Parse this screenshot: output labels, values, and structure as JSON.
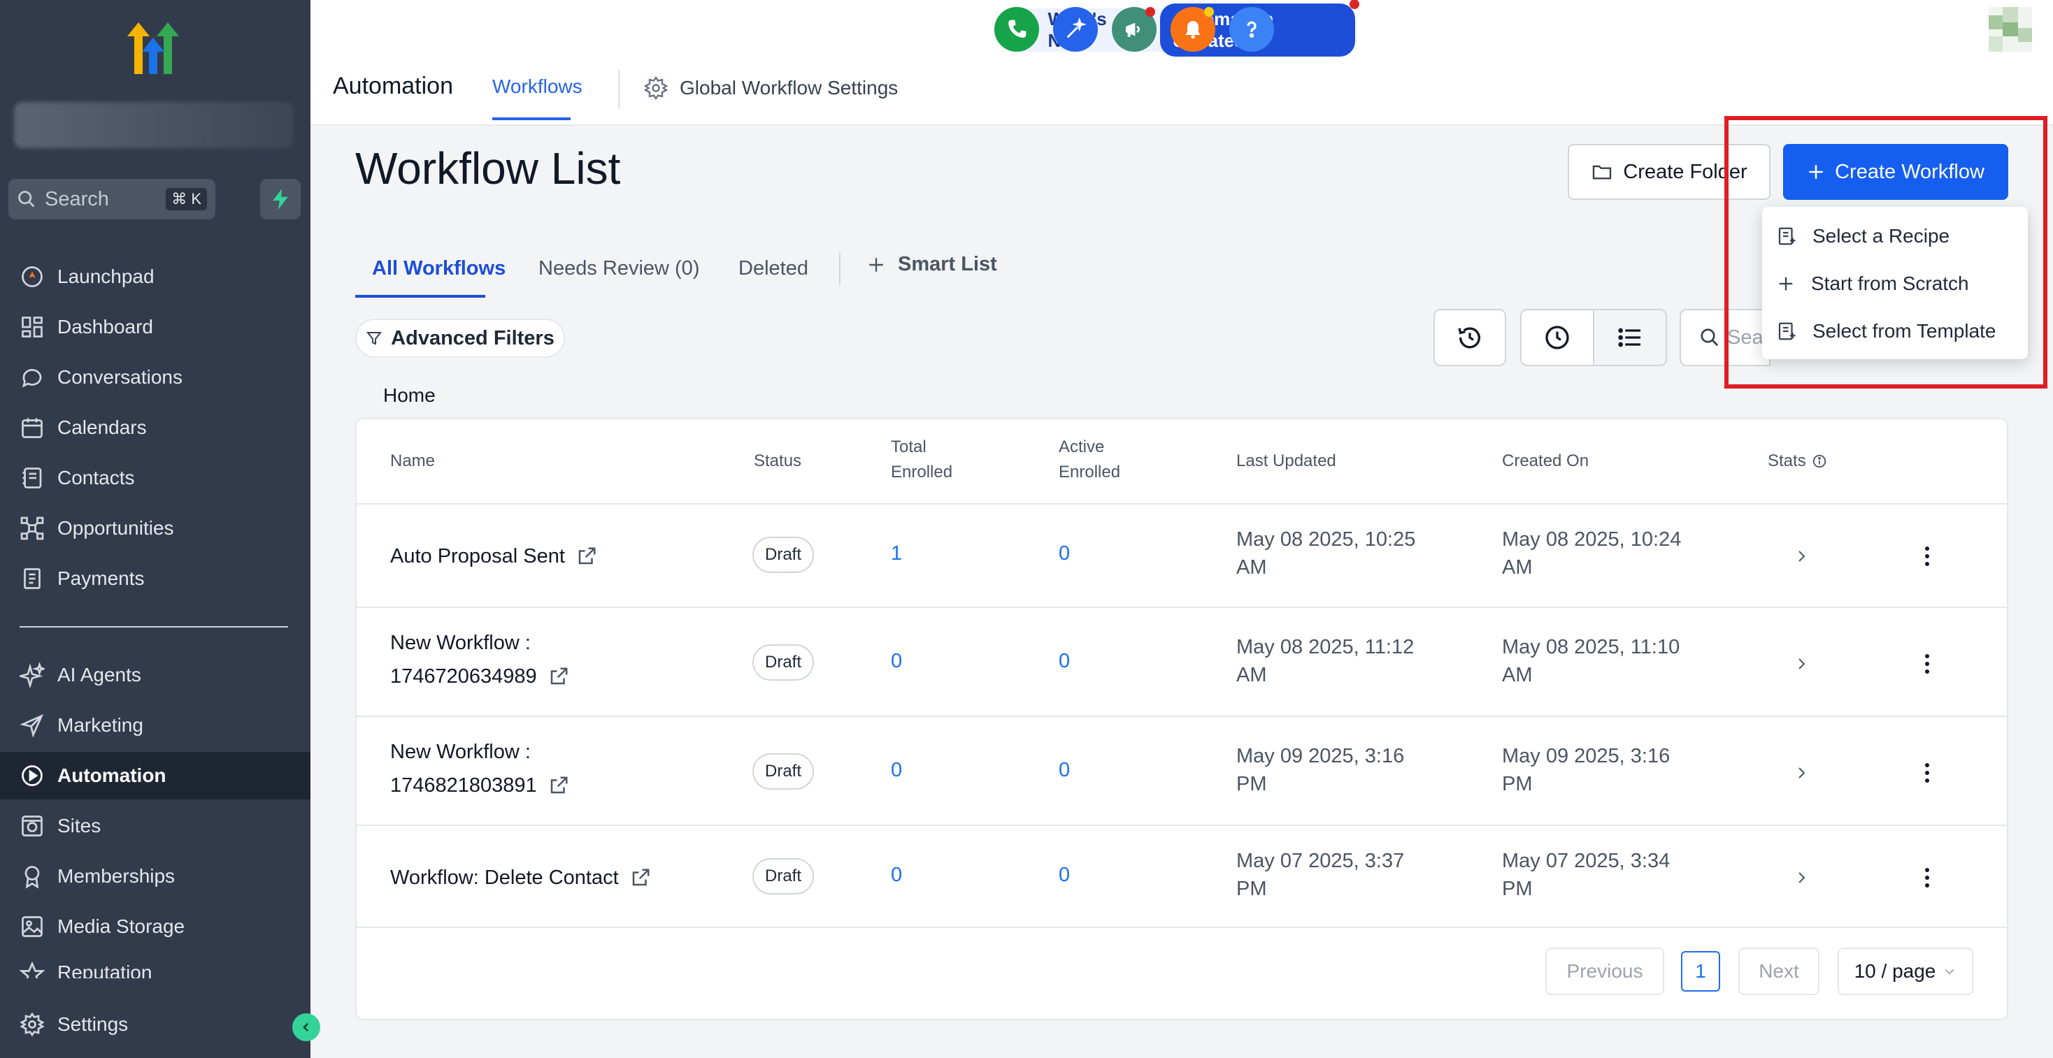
{
  "sidebar": {
    "search_placeholder": "Search",
    "search_shortcut": "⌘ K",
    "items": [
      {
        "label": "Launchpad",
        "icon": "rocket-icon"
      },
      {
        "label": "Dashboard",
        "icon": "grid-icon"
      },
      {
        "label": "Conversations",
        "icon": "chat-bubble-icon"
      },
      {
        "label": "Calendars",
        "icon": "calendar-icon"
      },
      {
        "label": "Contacts",
        "icon": "contact-card-icon"
      },
      {
        "label": "Opportunities",
        "icon": "network-icon"
      },
      {
        "label": "Payments",
        "icon": "receipt-icon"
      },
      {
        "label": "AI Agents",
        "icon": "sparkle-icon"
      },
      {
        "label": "Marketing",
        "icon": "send-icon"
      },
      {
        "label": "Automation",
        "icon": "automation-icon",
        "active": true
      },
      {
        "label": "Sites",
        "icon": "globe-icon"
      },
      {
        "label": "Memberships",
        "icon": "badge-icon"
      },
      {
        "label": "Media Storage",
        "icon": "image-icon"
      },
      {
        "label": "Reputation",
        "icon": "star-icon"
      },
      {
        "label": "Settings",
        "icon": "gear-icon"
      }
    ]
  },
  "topbar": {
    "section_title": "Automation",
    "tab_workflows": "Workflows",
    "tab_global_settings": "Global Workflow Settings",
    "whats_new": "What's New",
    "automation_updates": "Automation Updates"
  },
  "main": {
    "page_title": "Workflow List",
    "create_folder": "Create Folder",
    "create_workflow": "Create Workflow",
    "dropdown": [
      "Select a Recipe",
      "Start from Scratch",
      "Select from Template"
    ],
    "tabs": [
      "All Workflows",
      "Needs Review (0)",
      "Deleted"
    ],
    "smart_list": "Smart List",
    "advanced_filters": "Advanced Filters",
    "search_placeholder": "Sea",
    "breadcrumb": "Home"
  },
  "table": {
    "headers": {
      "name": "Name",
      "status": "Status",
      "total_enrolled_1": "Total",
      "total_enrolled_2": "Enrolled",
      "active_enrolled_1": "Active",
      "active_enrolled_2": "Enrolled",
      "last_updated": "Last Updated",
      "created_on": "Created On",
      "stats": "Stats"
    },
    "rows": [
      {
        "name_1": "Auto Proposal Sent",
        "name_2": "",
        "status": "Draft",
        "total": "1",
        "active": "0",
        "updated_1": "May 08 2025, 10:25",
        "updated_2": "AM",
        "created_1": "May 08 2025, 10:24",
        "created_2": "AM"
      },
      {
        "name_1": "New Workflow :",
        "name_2": "1746720634989",
        "status": "Draft",
        "total": "0",
        "active": "0",
        "updated_1": "May 08 2025, 11:12",
        "updated_2": "AM",
        "created_1": "May 08 2025, 11:10",
        "created_2": "AM"
      },
      {
        "name_1": "New Workflow :",
        "name_2": "1746821803891",
        "status": "Draft",
        "total": "0",
        "active": "0",
        "updated_1": "May 09 2025, 3:16",
        "updated_2": "PM",
        "created_1": "May 09 2025, 3:16",
        "created_2": "PM"
      },
      {
        "name_1": "Workflow: Delete Contact",
        "name_2": "",
        "status": "Draft",
        "total": "0",
        "active": "0",
        "updated_1": "May 07 2025, 3:37",
        "updated_2": "PM",
        "created_1": "May 07 2025, 3:34",
        "created_2": "PM"
      }
    ]
  },
  "pagination": {
    "previous": "Previous",
    "current": "1",
    "next": "Next",
    "per_page": "10 / page"
  },
  "colors": {
    "sidebar_bg": "#323b4c",
    "primary": "#155eef",
    "highlight_border": "#e11d24",
    "link_number": "#1d6ff2"
  }
}
